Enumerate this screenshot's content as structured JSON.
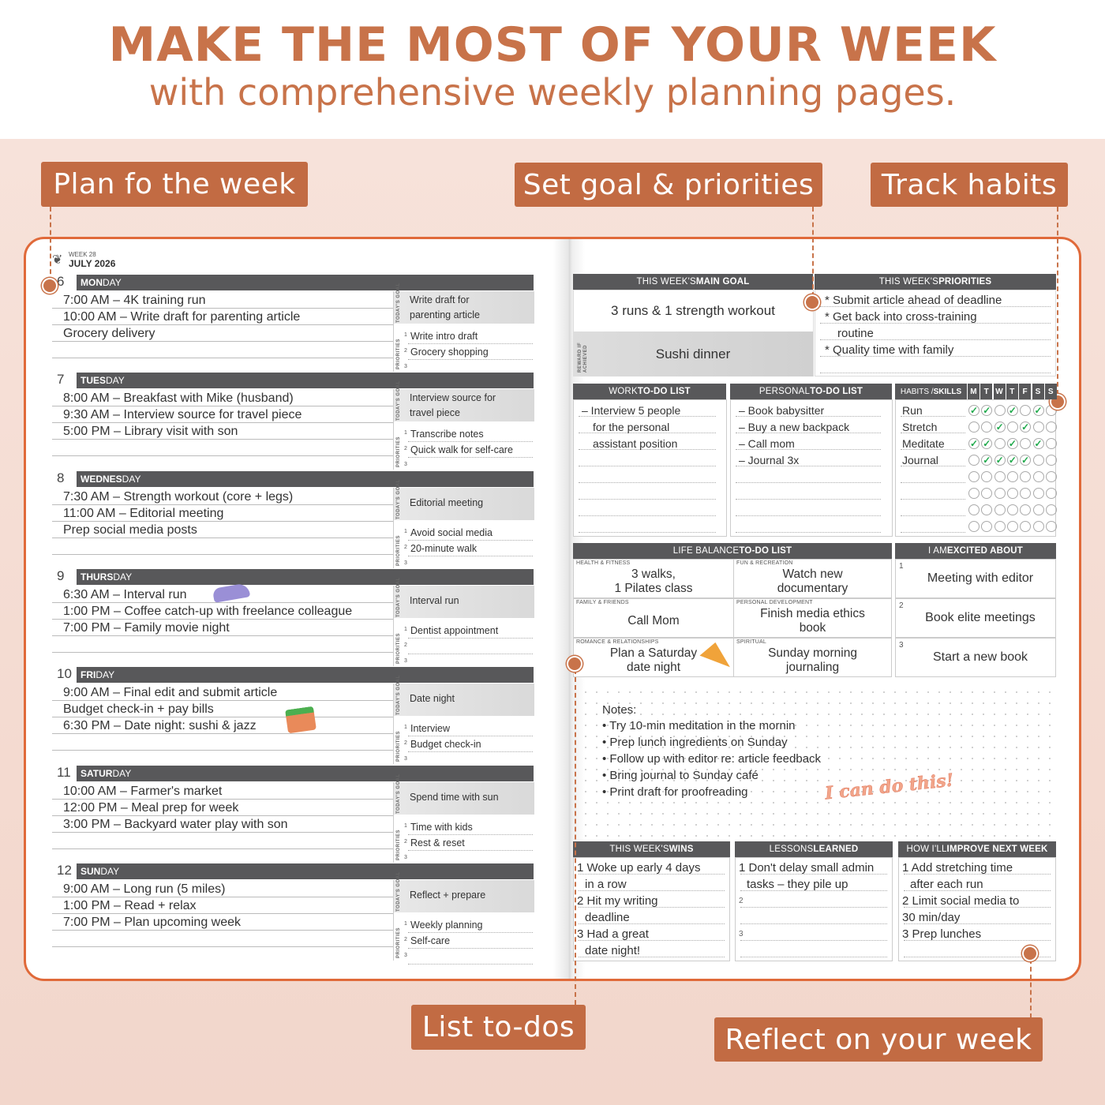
{
  "headline": "MAKE THE MOST OF YOUR WEEK",
  "subline": "with comprehensive weekly planning pages.",
  "colors": {
    "accent": "#c8734a",
    "tag": "#c26b43",
    "border": "#e06a3a",
    "bar": "#58585a",
    "check": "#1fa94b"
  },
  "callouts": {
    "plan": "Plan fo the week",
    "goals": "Set goal & priorities",
    "habits": "Track habits",
    "todos": "List to-dos",
    "reflect": "Reflect on your week"
  },
  "left_page": {
    "week": "WEEK 28",
    "month": "JULY 2026",
    "goal_label": "TODAY'S GOAL",
    "priorities_label": "PRIORITIES",
    "days": [
      {
        "num": "6",
        "bold": "MON",
        "rest": "DAY",
        "entries": [
          "7:00 AM – 4K training run",
          "10:00 AM – Write draft for parenting article",
          "Grocery delivery"
        ],
        "goal": [
          "Write draft for",
          "parenting article"
        ],
        "priorities": [
          "Write intro draft",
          "Grocery shopping",
          ""
        ]
      },
      {
        "num": "7",
        "bold": "TUES",
        "rest": "DAY",
        "entries": [
          "8:00 AM – Breakfast with Mike (husband)",
          "9:30 AM – Interview source for travel piece",
          "5:00 PM – Library visit with son"
        ],
        "goal": [
          "Interview source for",
          "travel piece"
        ],
        "priorities": [
          "Transcribe notes",
          "Quick walk for self-care",
          ""
        ]
      },
      {
        "num": "8",
        "bold": "WEDNES",
        "rest": "DAY",
        "entries": [
          "7:30 AM – Strength workout (core + legs)",
          "11:00 AM – Editorial meeting",
          "Prep social media posts"
        ],
        "goal": [
          "Editorial meeting"
        ],
        "priorities": [
          "Avoid social media",
          "20-minute walk",
          ""
        ]
      },
      {
        "num": "9",
        "bold": "THURS",
        "rest": "DAY",
        "entries": [
          "6:30 AM – Interval run",
          "1:00 PM – Coffee catch-up with freelance colleague",
          "7:00 PM – Family movie night"
        ],
        "goal": [
          "Interval run"
        ],
        "priorities": [
          "Dentist appointment",
          "",
          ""
        ]
      },
      {
        "num": "10",
        "bold": "FRI",
        "rest": "DAY",
        "entries": [
          "9:00 AM – Final edit and submit article",
          "Budget check-in + pay bills",
          "6:30 PM – Date night: sushi & jazz"
        ],
        "goal": [
          "Date night"
        ],
        "priorities": [
          "Interview",
          "Budget check-in",
          ""
        ]
      },
      {
        "num": "11",
        "bold": "SATUR",
        "rest": "DAY",
        "entries": [
          "10:00 AM – Farmer's market",
          "12:00 PM – Meal prep for week",
          "3:00 PM – Backyard water play with son"
        ],
        "goal": [
          "Spend time with sun"
        ],
        "priorities": [
          "Time with kids",
          "Rest & reset",
          ""
        ]
      },
      {
        "num": "12",
        "bold": "SUN",
        "rest": "DAY",
        "entries": [
          "9:00 AM – Long run (5 miles)",
          "1:00 PM – Read + relax",
          "7:00 PM – Plan upcoming week"
        ],
        "goal": [
          "Reflect + prepare"
        ],
        "priorities": [
          "Weekly planning",
          "Self-care",
          ""
        ]
      }
    ]
  },
  "right_page": {
    "main_goal": {
      "h1": "THIS WEEK'S ",
      "h2": "MAIN GOAL",
      "value": "3 runs & 1 strength workout",
      "reward_label": "REWARD IF ACHIEVED",
      "reward": "Sushi dinner"
    },
    "priorities": {
      "h1": "THIS WEEK'S ",
      "h2": "PRIORITIES",
      "items": [
        "* Submit article ahead of deadline",
        "* Get back into cross-training",
        "routine",
        "* Quality time with family"
      ]
    },
    "work": {
      "h1": "WORK ",
      "h2": "TO-DO LIST",
      "items": [
        "– Interview 5 people",
        "for the personal",
        "assistant position"
      ]
    },
    "personal": {
      "h1": "PERSONAL ",
      "h2": "TO-DO LIST",
      "items": [
        "– Book babysitter",
        "– Buy a new backpack",
        "– Call mom",
        "– Journal 3x"
      ]
    },
    "habits": {
      "h1": "HABITS / ",
      "h2": "SKILLS",
      "days": [
        "M",
        "T",
        "W",
        "T",
        "F",
        "S",
        "S"
      ],
      "check": "✓",
      "rows": [
        {
          "name": "Run",
          "done": [
            1,
            1,
            0,
            1,
            0,
            1,
            0
          ]
        },
        {
          "name": "Stretch",
          "done": [
            0,
            0,
            1,
            0,
            1,
            0,
            0
          ]
        },
        {
          "name": "Meditate",
          "done": [
            1,
            1,
            0,
            1,
            0,
            1,
            0
          ]
        },
        {
          "name": "Journal",
          "done": [
            0,
            1,
            1,
            1,
            1,
            0,
            0
          ]
        },
        {
          "name": "",
          "done": [
            0,
            0,
            0,
            0,
            0,
            0,
            0
          ]
        },
        {
          "name": "",
          "done": [
            0,
            0,
            0,
            0,
            0,
            0,
            0
          ]
        },
        {
          "name": "",
          "done": [
            0,
            0,
            0,
            0,
            0,
            0,
            0
          ]
        },
        {
          "name": "",
          "done": [
            0,
            0,
            0,
            0,
            0,
            0,
            0
          ]
        }
      ]
    },
    "life": {
      "h1": "LIFE BALANCE ",
      "h2": "TO-DO LIST",
      "cells": [
        {
          "cat": "HEALTH & FITNESS",
          "text": [
            "3 walks,",
            "1 Pilates class"
          ]
        },
        {
          "cat": "FUN & RECREATION",
          "text": [
            "Watch new",
            "documentary"
          ]
        },
        {
          "cat": "FAMILY & FRIENDS",
          "text": [
            "Call Mom"
          ]
        },
        {
          "cat": "PERSONAL DEVELOPMENT",
          "text": [
            "Finish media ethics",
            "book"
          ]
        },
        {
          "cat": "ROMANCE & RELATIONSHIPS",
          "text": [
            "Plan a Saturday",
            "date night"
          ]
        },
        {
          "cat": "SPIRITUAL",
          "text": [
            "Sunday morning",
            "journaling"
          ]
        }
      ]
    },
    "excited": {
      "h1": "I AM ",
      "h2": "EXCITED ABOUT",
      "items": [
        {
          "n": "1",
          "t": "Meeting with editor"
        },
        {
          "n": "2",
          "t": "Book elite meetings"
        },
        {
          "n": "3",
          "t": "Start a new book"
        }
      ]
    },
    "notes": {
      "title": "Notes:",
      "items": [
        "• Try 10-min meditation in the mornin",
        "• Prep lunch ingredients on Sunday",
        "• Follow up with editor re: article feedback",
        "• Bring journal to Sunday café",
        "• Print draft for proofreading"
      ],
      "sticker": "I can do this!"
    },
    "wins": {
      "h1": "THIS WEEK'S ",
      "h2": "WINS",
      "lines": [
        "1 Woke up early 4 days",
        "in a row",
        "2 Hit my writing",
        "deadline",
        "3 Had a great",
        "date night!"
      ]
    },
    "lessons": {
      "h1": "LESSONS ",
      "h2": "LEARNED",
      "lines": [
        "1 Don't delay small admin",
        "tasks – they pile up",
        "2",
        "",
        "3",
        ""
      ]
    },
    "improve": {
      "h1": "HOW I'LL ",
      "h2": "IMPROVE NEXT WEEK",
      "lines": [
        "1 Add stretching time",
        "after each run",
        "2 Limit social media to",
        "30 min/day",
        "3 Prep lunches",
        ""
      ]
    }
  }
}
